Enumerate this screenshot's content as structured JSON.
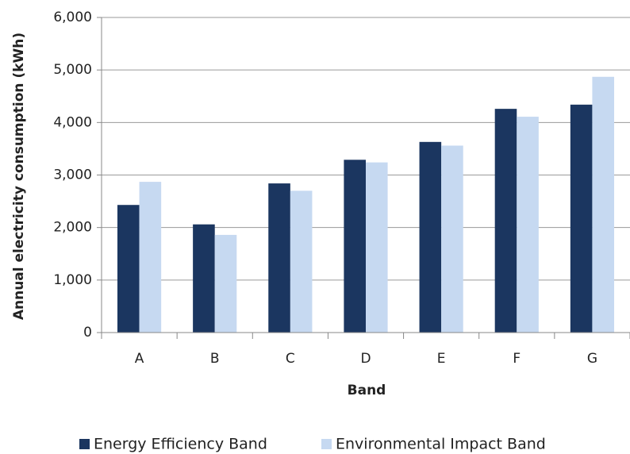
{
  "chart_data": {
    "type": "bar",
    "x_label": "Band",
    "y_label": "Annual electricity consumption (kWh)",
    "categories": [
      "A",
      "B",
      "C",
      "D",
      "E",
      "F",
      "G"
    ],
    "series": [
      {
        "name": "Energy Efficiency Band",
        "color": "#1b3660",
        "values": [
          2430,
          2060,
          2840,
          3290,
          3630,
          4260,
          4340
        ]
      },
      {
        "name": "Environmental Impact Band",
        "color": "#c6d9f1",
        "values": [
          2870,
          1860,
          2700,
          3240,
          3560,
          4110,
          4870
        ]
      }
    ],
    "ylim": [
      0,
      6000
    ],
    "yticks": [
      0,
      {
        "value": 1000,
        "label": "1,000"
      },
      {
        "value": 2000,
        "label": "2,000"
      },
      {
        "value": 3000,
        "label": "3,000"
      },
      {
        "value": 4000,
        "label": "4,000"
      },
      {
        "value": 5000,
        "label": "5,000"
      },
      {
        "value": 6000,
        "label": "6,000"
      }
    ],
    "grid": true,
    "legend": "bottom"
  }
}
